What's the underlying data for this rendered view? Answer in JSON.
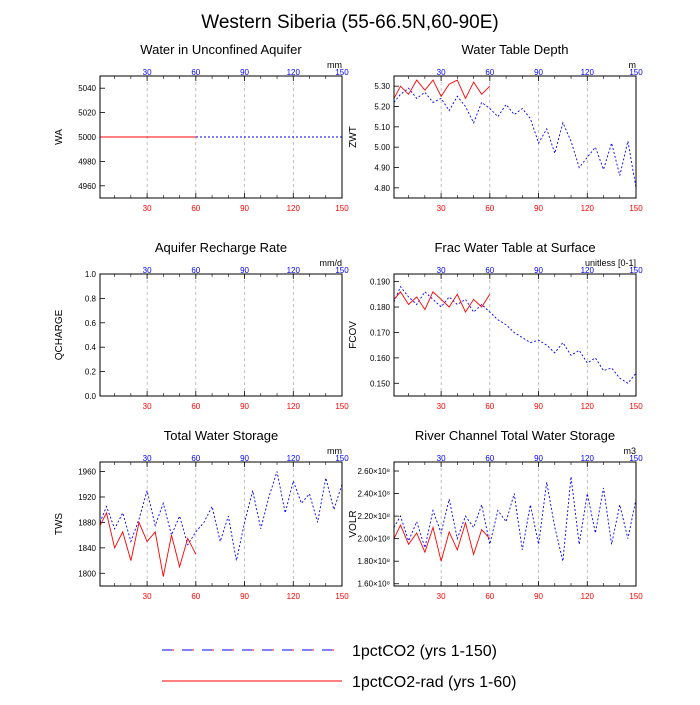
{
  "figure": {
    "title": "Western Siberia (55-66.5N,60-90E)",
    "legend": [
      {
        "label": "1pctCO2 (yrs 1-150)",
        "color": "#0000ff",
        "style": "dashed"
      },
      {
        "label": "1pctCO2-rad (yrs 1-60)",
        "color": "#ff0000",
        "style": "solid"
      }
    ],
    "colors": {
      "series_150": "#0000ff",
      "series_60": "#ff0000",
      "axis": "#000000",
      "grid": "#999999"
    }
  },
  "chart_data": [
    {
      "type": "line",
      "title": "Water in Unconfined Aquifer",
      "ylabel": "WA",
      "units": "mm",
      "xlim": [
        1,
        150
      ],
      "ylim": [
        4950,
        5050
      ],
      "yticks": [
        4960,
        4980,
        5000,
        5020,
        5040
      ],
      "xticks": [
        30,
        60,
        90,
        120,
        150
      ],
      "grid": "vertical-dashed",
      "series": [
        {
          "name": "1pctCO2 (yrs 1-150)",
          "x": [
            1,
            150
          ],
          "values": [
            5000,
            5000
          ]
        },
        {
          "name": "1pctCO2-rad (yrs 1-60)",
          "x": [
            1,
            60
          ],
          "values": [
            5000,
            5000
          ]
        }
      ]
    },
    {
      "type": "line",
      "title": "Water Table Depth",
      "ylabel": "ZWT",
      "units": "m",
      "xlim": [
        1,
        150
      ],
      "ylim": [
        4.75,
        5.35
      ],
      "yticks": [
        4.8,
        4.9,
        5.0,
        5.1,
        5.2,
        5.3
      ],
      "ytick_labels": [
        "4.80",
        "4.90",
        "5.00",
        "5.10",
        "5.20",
        "5.30"
      ],
      "xticks": [
        30,
        60,
        90,
        120,
        150
      ],
      "grid": "vertical-dashed",
      "series": [
        {
          "name": "1pctCO2 (yrs 1-150)",
          "x": [
            1,
            5,
            10,
            15,
            20,
            25,
            30,
            35,
            40,
            45,
            50,
            55,
            60,
            65,
            70,
            75,
            80,
            85,
            90,
            95,
            100,
            105,
            110,
            115,
            120,
            125,
            130,
            135,
            140,
            145,
            150
          ],
          "values": [
            5.22,
            5.26,
            5.29,
            5.24,
            5.27,
            5.22,
            5.24,
            5.18,
            5.25,
            5.2,
            5.12,
            5.22,
            5.19,
            5.15,
            5.21,
            5.16,
            5.19,
            5.14,
            5.02,
            5.09,
            4.97,
            5.12,
            5.03,
            4.9,
            4.95,
            5.0,
            4.89,
            5.02,
            4.86,
            5.03,
            4.8
          ]
        },
        {
          "name": "1pctCO2-rad (yrs 1-60)",
          "x": [
            1,
            5,
            10,
            15,
            20,
            25,
            30,
            35,
            40,
            45,
            50,
            55,
            60
          ],
          "values": [
            5.24,
            5.3,
            5.26,
            5.33,
            5.28,
            5.33,
            5.25,
            5.31,
            5.33,
            5.24,
            5.32,
            5.26,
            5.3
          ]
        }
      ]
    },
    {
      "type": "line",
      "title": "Aquifer Recharge Rate",
      "ylabel": "QCHARGE",
      "units": "mm/d",
      "xlim": [
        1,
        150
      ],
      "ylim": [
        0.0,
        1.0
      ],
      "yticks": [
        0.0,
        0.2,
        0.4,
        0.6,
        0.8,
        1.0
      ],
      "ytick_labels": [
        "0.0",
        "0.2",
        "0.4",
        "0.6",
        "0.8",
        "1.0"
      ],
      "xticks": [
        30,
        60,
        90,
        120,
        150
      ],
      "grid": "vertical-dashed",
      "series": []
    },
    {
      "type": "line",
      "title": "Frac Water Table at Surface",
      "ylabel": "FCOV",
      "units": "unitless [0-1]",
      "xlim": [
        1,
        150
      ],
      "ylim": [
        0.145,
        0.193
      ],
      "yticks": [
        0.15,
        0.16,
        0.17,
        0.18,
        0.19
      ],
      "ytick_labels": [
        "0.150",
        "0.160",
        "0.170",
        "0.180",
        "0.190"
      ],
      "xticks": [
        30,
        60,
        90,
        120,
        150
      ],
      "grid": "vertical-dashed",
      "series": [
        {
          "name": "1pctCO2 (yrs 1-150)",
          "x": [
            1,
            5,
            10,
            15,
            20,
            25,
            30,
            35,
            40,
            45,
            50,
            55,
            60,
            65,
            70,
            75,
            80,
            85,
            90,
            95,
            100,
            105,
            110,
            115,
            120,
            125,
            130,
            135,
            140,
            145,
            150
          ],
          "values": [
            0.182,
            0.188,
            0.184,
            0.181,
            0.186,
            0.183,
            0.18,
            0.184,
            0.181,
            0.183,
            0.178,
            0.181,
            0.178,
            0.175,
            0.173,
            0.17,
            0.168,
            0.166,
            0.167,
            0.165,
            0.162,
            0.166,
            0.161,
            0.163,
            0.158,
            0.16,
            0.155,
            0.156,
            0.152,
            0.15,
            0.154
          ]
        },
        {
          "name": "1pctCO2-rad (yrs 1-60)",
          "x": [
            1,
            5,
            10,
            15,
            20,
            25,
            30,
            35,
            40,
            45,
            50,
            55,
            60
          ],
          "values": [
            0.183,
            0.186,
            0.181,
            0.184,
            0.179,
            0.186,
            0.183,
            0.18,
            0.185,
            0.178,
            0.183,
            0.18,
            0.185
          ]
        }
      ]
    },
    {
      "type": "line",
      "title": "Total Water Storage",
      "ylabel": "TWS",
      "units": "mm",
      "xlim": [
        1,
        150
      ],
      "ylim": [
        1780,
        1975
      ],
      "yticks": [
        1800,
        1840,
        1880,
        1920,
        1960
      ],
      "xticks": [
        30,
        60,
        90,
        120,
        150
      ],
      "grid": "vertical-dashed",
      "series": [
        {
          "name": "1pctCO2 (yrs 1-150)",
          "x": [
            1,
            5,
            10,
            15,
            20,
            25,
            30,
            35,
            40,
            45,
            50,
            55,
            60,
            65,
            70,
            75,
            80,
            85,
            90,
            95,
            100,
            105,
            110,
            115,
            120,
            125,
            130,
            135,
            140,
            145,
            150
          ],
          "values": [
            1880,
            1905,
            1870,
            1895,
            1850,
            1885,
            1930,
            1875,
            1910,
            1860,
            1890,
            1845,
            1865,
            1880,
            1905,
            1850,
            1890,
            1820,
            1880,
            1930,
            1870,
            1920,
            1960,
            1895,
            1945,
            1910,
            1925,
            1880,
            1950,
            1900,
            1940
          ]
        },
        {
          "name": "1pctCO2-rad (yrs 1-60)",
          "x": [
            1,
            5,
            10,
            15,
            20,
            25,
            30,
            35,
            40,
            45,
            50,
            55,
            60
          ],
          "values": [
            1875,
            1895,
            1840,
            1865,
            1820,
            1880,
            1850,
            1865,
            1795,
            1860,
            1810,
            1855,
            1830
          ]
        }
      ]
    },
    {
      "type": "line",
      "title": "River Channel Total Water Storage",
      "ylabel": "VOLR",
      "units": "m3",
      "xlim": [
        1,
        150
      ],
      "ylim": [
        1.58,
        2.68
      ],
      "yticks": [
        1.6,
        1.8,
        2.0,
        2.2,
        2.4,
        2.6
      ],
      "ytick_labels": [
        "1.60×10⁸",
        "1.80×10⁸",
        "2.00×10⁸",
        "2.20×10⁸",
        "2.40×10⁸",
        "2.60×10⁸"
      ],
      "xticks": [
        30,
        60,
        90,
        120,
        150
      ],
      "grid": "vertical-dashed",
      "series": [
        {
          "name": "1pctCO2 (yrs 1-150)",
          "x": [
            1,
            5,
            10,
            15,
            20,
            25,
            30,
            35,
            40,
            45,
            50,
            55,
            60,
            65,
            70,
            75,
            80,
            85,
            90,
            95,
            100,
            105,
            110,
            115,
            120,
            125,
            130,
            135,
            140,
            145,
            150
          ],
          "values": [
            2.1,
            2.2,
            1.98,
            2.15,
            1.92,
            2.25,
            2.05,
            2.35,
            2.0,
            2.2,
            2.1,
            2.3,
            1.95,
            2.25,
            2.15,
            2.4,
            1.9,
            2.3,
            1.95,
            2.5,
            2.1,
            1.8,
            2.55,
            1.95,
            2.4,
            2.05,
            2.45,
            1.95,
            2.3,
            2.0,
            2.35
          ]
        },
        {
          "name": "1pctCO2-rad (yrs 1-60)",
          "x": [
            1,
            5,
            10,
            15,
            20,
            25,
            30,
            35,
            40,
            45,
            50,
            55,
            60
          ],
          "values": [
            2.0,
            2.12,
            1.95,
            2.05,
            1.88,
            2.1,
            1.8,
            2.06,
            1.9,
            2.14,
            1.86,
            2.08,
            2.0
          ]
        }
      ]
    }
  ]
}
